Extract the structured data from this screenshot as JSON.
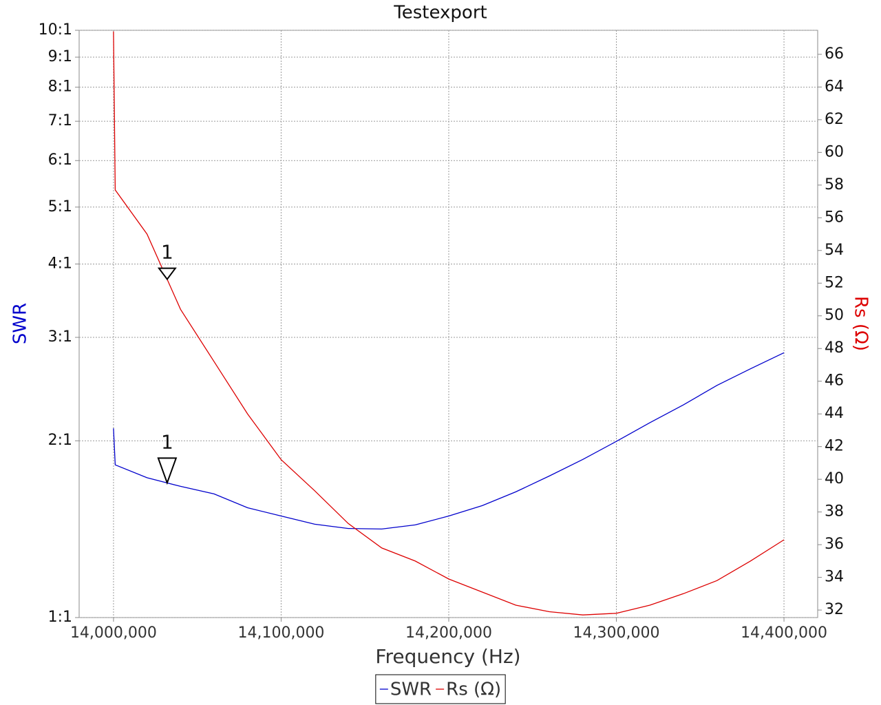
{
  "chart_data": {
    "type": "line",
    "title": "Testexport",
    "x_label": "Frequency (Hz)",
    "y_label": "SWR",
    "y2_label": "Rs (Ω)",
    "x": [
      14000000,
      14001000,
      14020000,
      14040000,
      14060000,
      14080000,
      14100000,
      14120000,
      14140000,
      14160000,
      14180000,
      14200000,
      14220000,
      14240000,
      14260000,
      14280000,
      14300000,
      14320000,
      14340000,
      14360000,
      14380000,
      14400000
    ],
    "series": [
      {
        "name": "SWR",
        "color": "#0000cc",
        "axis": "y",
        "values": [
          2.1,
          1.82,
          1.73,
          1.673,
          1.624,
          1.538,
          1.489,
          1.442,
          1.418,
          1.415,
          1.438,
          1.489,
          1.551,
          1.637,
          1.742,
          1.859,
          1.995,
          2.147,
          2.302,
          2.485,
          2.652,
          2.825
        ]
      },
      {
        "name": "Rs (Ω)",
        "color": "#dd0000",
        "axis": "y2",
        "values": [
          67.4,
          57.7,
          55.0,
          50.4,
          47.2,
          44.0,
          41.2,
          39.3,
          37.3,
          35.8,
          35.0,
          33.9,
          33.1,
          32.3,
          31.9,
          31.7,
          31.8,
          32.3,
          33.0,
          33.8,
          35.0,
          36.3
        ]
      }
    ],
    "markers": [
      {
        "label": "1",
        "x": 14032000
      }
    ],
    "xlim": [
      13979500,
      14420100
    ],
    "xticks": [
      {
        "value": 14000000,
        "label": "14,000,000"
      },
      {
        "value": 14100000,
        "label": "14,100,000"
      },
      {
        "value": 14200000,
        "label": "14,200,000"
      },
      {
        "value": 14300000,
        "label": "14,300,000"
      },
      {
        "value": 14400000,
        "label": "14,400,000"
      }
    ],
    "ylim": [
      1,
      10
    ],
    "ylog": true,
    "yticks": [
      {
        "value": 1,
        "label": "1:1"
      },
      {
        "value": 2,
        "label": "2:1"
      },
      {
        "value": 3,
        "label": "3:1"
      },
      {
        "value": 4,
        "label": "4:1"
      },
      {
        "value": 5,
        "label": "5:1"
      },
      {
        "value": 6,
        "label": "6:1"
      },
      {
        "value": 7,
        "label": "7:1"
      },
      {
        "value": 8,
        "label": "8:1"
      },
      {
        "value": 9,
        "label": "9:1"
      },
      {
        "value": 10,
        "label": "10:1"
      }
    ],
    "y2lim": [
      31.54,
      67.47
    ],
    "y2ticks": [
      32,
      34,
      36,
      38,
      40,
      42,
      44,
      46,
      48,
      50,
      52,
      54,
      56,
      58,
      60,
      62,
      64,
      66
    ],
    "grid": true,
    "legend": "bottom"
  }
}
